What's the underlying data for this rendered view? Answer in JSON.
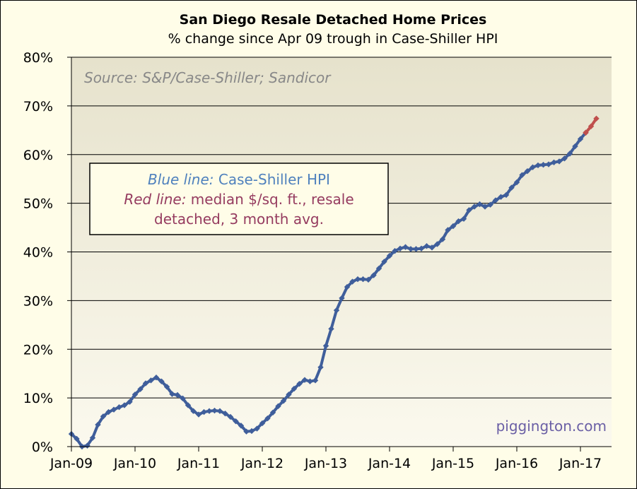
{
  "chart_data": {
    "type": "line",
    "title": "San Diego Resale Detached Home Prices",
    "subtitle": "% change since Apr 09 trough in Case-Shiller HPI",
    "source_note": "Source: S&P/Case-Shiller; Sandicor",
    "watermark": "piggington.com",
    "legend": {
      "line1_label": "Blue line:",
      "line1_text": "Case-Shiller HPI",
      "line2_label": "Red line:",
      "line2_text": "median $/sq. ft., resale",
      "line3_text": "detached, 3 month avg."
    },
    "x_tick_labels": [
      "Jan-09",
      "Jan-10",
      "Jan-11",
      "Jan-12",
      "Jan-13",
      "Jan-14",
      "Jan-15",
      "Jan-16",
      "Jan-17"
    ],
    "y_tick_labels": [
      "0%",
      "10%",
      "20%",
      "30%",
      "40%",
      "50%",
      "60%",
      "70%",
      "80%"
    ],
    "ylim": [
      0,
      80
    ],
    "x_start": "Jan-09",
    "x_unit": "month",
    "colors": {
      "blue": "#3f5e9b",
      "red": "#c0504d",
      "legend_blue": "#4f81bd",
      "legend_red": "#953b5f"
    },
    "series": [
      {
        "name": "Case-Shiller HPI",
        "color": "#3f5e9b",
        "values": [
          2.6,
          1.6,
          0.0,
          0.2,
          1.8,
          4.5,
          6.2,
          7.1,
          7.6,
          8.1,
          8.5,
          9.2,
          10.7,
          11.8,
          13.0,
          13.6,
          14.2,
          13.4,
          12.3,
          10.8,
          10.6,
          9.9,
          8.5,
          7.3,
          6.6,
          7.1,
          7.3,
          7.4,
          7.3,
          6.8,
          6.1,
          5.2,
          4.3,
          3.1,
          3.2,
          3.7,
          4.8,
          5.8,
          7.0,
          8.3,
          9.4,
          10.7,
          11.9,
          12.9,
          13.7,
          13.4,
          13.6,
          16.3,
          20.7,
          24.2,
          28.0,
          30.5,
          32.8,
          33.9,
          34.4,
          34.4,
          34.3,
          35.2,
          36.6,
          38.0,
          39.2,
          40.2,
          40.7,
          41.0,
          40.6,
          40.6,
          40.7,
          41.2,
          40.9,
          41.6,
          42.6,
          44.5,
          45.3,
          46.3,
          46.8,
          48.6,
          49.3,
          49.8,
          49.3,
          49.7,
          50.6,
          51.3,
          51.7,
          53.2,
          54.3,
          55.8,
          56.6,
          57.4,
          57.8,
          57.9,
          58.0,
          58.4,
          58.6,
          59.2,
          60.2,
          61.7,
          63.2,
          64.5
        ]
      },
      {
        "name": "median $/sq. ft., resale detached, 3 month avg.",
        "color": "#c0504d",
        "x_start_index": 97,
        "values": [
          64.5,
          65.8,
          67.4
        ]
      }
    ]
  }
}
